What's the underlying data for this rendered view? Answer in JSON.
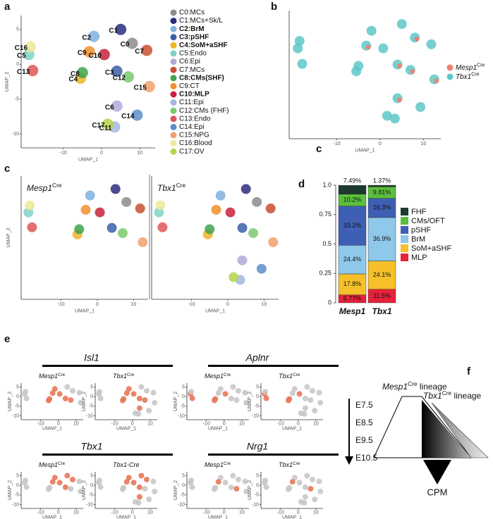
{
  "panel_labels": [
    "a",
    "b",
    "c",
    "d",
    "e",
    "f"
  ],
  "stray_label": "c",
  "chart_data": [
    {
      "type": "scatter",
      "xlabel": "UMAP_1",
      "ylabel": "UMAP_2",
      "xlim": [
        -21,
        14
      ],
      "ylim": [
        -12,
        7
      ],
      "xticks": [
        -10,
        0,
        10
      ],
      "yticks": [
        -10,
        -5,
        0,
        5
      ],
      "series": [
        {
          "name": "C0:MCs",
          "label": "C0",
          "bold": false,
          "color": "#8c8c8c",
          "x": [
            8
          ],
          "y": [
            3
          ]
        },
        {
          "name": "C1:MCs+Sk/L",
          "label": "C1",
          "bold": false,
          "color": "#2b2d7e",
          "x": [
            5
          ],
          "y": [
            5
          ]
        },
        {
          "name": "C2:BrM",
          "label": "C2",
          "bold": true,
          "color": "#7fb2dd",
          "x": [
            -2
          ],
          "y": [
            4
          ]
        },
        {
          "name": "C3:pSHF",
          "label": "C3",
          "bold": true,
          "color": "#3a5fa8",
          "x": [
            4
          ],
          "y": [
            -1
          ]
        },
        {
          "name": "C4:SoM+aSHF",
          "label": "C4",
          "bold": true,
          "color": "#f0b429",
          "x": [
            -5.5
          ],
          "y": [
            -2
          ]
        },
        {
          "name": "C5:Endo",
          "label": "C5",
          "bold": false,
          "color": "#7fd3c4",
          "x": [
            -19
          ],
          "y": [
            1.4
          ]
        },
        {
          "name": "C6:Epi",
          "label": "C6",
          "bold": false,
          "color": "#b3a9d8",
          "x": [
            4
          ],
          "y": [
            -6
          ]
        },
        {
          "name": "C7:MCs",
          "label": "C7",
          "bold": false,
          "color": "#c8502f",
          "x": [
            11.8
          ],
          "y": [
            2
          ]
        },
        {
          "name": "C8:CMs(SHF)",
          "label": "C8",
          "bold": true,
          "color": "#3fa34d",
          "x": [
            -5
          ],
          "y": [
            -1.2
          ]
        },
        {
          "name": "C9:CT",
          "label": "C9",
          "bold": false,
          "color": "#f28e2b",
          "x": [
            -3.2
          ],
          "y": [
            1.8
          ]
        },
        {
          "name": "C10:MLP",
          "label": "C10",
          "bold": true,
          "color": "#c8213a",
          "x": [
            0.7
          ],
          "y": [
            1.4
          ]
        },
        {
          "name": "C11:Epi",
          "label": "C11",
          "bold": false,
          "color": "#a3b8dc",
          "x": [
            3.4
          ],
          "y": [
            -9
          ]
        },
        {
          "name": "C12:CMs (FHF)",
          "label": "C12",
          "bold": false,
          "color": "#7bc96f",
          "x": [
            7
          ],
          "y": [
            -1.8
          ]
        },
        {
          "name": "C13:Endo",
          "label": "C13",
          "bold": false,
          "color": "#e05555",
          "x": [
            -18
          ],
          "y": [
            -0.9
          ]
        },
        {
          "name": "C14:Epi",
          "label": "C14",
          "bold": false,
          "color": "#5e8ec7",
          "x": [
            9.3
          ],
          "y": [
            -7.3
          ]
        },
        {
          "name": "C15:NPG",
          "label": "C15",
          "bold": false,
          "color": "#f0a070",
          "x": [
            12.5
          ],
          "y": [
            -3.2
          ]
        },
        {
          "name": "C16:Blood",
          "label": "C16",
          "bold": false,
          "color": "#efe89a",
          "x": [
            -18.6
          ],
          "y": [
            2.5
          ]
        },
        {
          "name": "C17:OV",
          "label": "C17",
          "bold": false,
          "color": "#b7d44a",
          "x": [
            1.6
          ],
          "y": [
            -8.6
          ]
        }
      ]
    },
    {
      "type": "scatter",
      "xlabel": "UMAP_1",
      "xlim": [
        -21,
        14
      ],
      "ylim": [
        -12,
        7
      ],
      "xticks": [
        -10,
        0,
        10
      ],
      "series": [
        {
          "name": "Mesp1",
          "sup": "Cre",
          "color": "#f08070"
        },
        {
          "name": "Tbx1",
          "sup": "Cre",
          "color": "#5ec8c8"
        }
      ]
    },
    {
      "type": "scatter",
      "xlabel": "UMAP_1",
      "ylabel": "UMAP_2",
      "xlim": [
        -21,
        14
      ],
      "ylim": [
        -12,
        7
      ],
      "xticks": [
        -10,
        0,
        10
      ],
      "facets": [
        {
          "name": "Mesp1",
          "sup": "Cre"
        },
        {
          "name": "Tbx1",
          "sup": "Cre"
        }
      ]
    },
    {
      "type": "bar",
      "stacked": true,
      "categories": [
        "Mesp1",
        "Tbx1"
      ],
      "ylim": [
        0,
        1
      ],
      "yticks": [
        0,
        0.25,
        0.5,
        0.75,
        {
          "value": 1,
          "label": "1.0"
        }
      ],
      "series": [
        {
          "name": "FHF",
          "color": "#1d3a2e",
          "values": [
            0.0749,
            0.0137
          ],
          "value_labels": [
            "7.49%",
            "1.37%"
          ]
        },
        {
          "name": "CMs/OFT",
          "color": "#5bbf3e",
          "values": [
            0.102,
            0.0981
          ],
          "value_labels": [
            "10.2%",
            "9.81%"
          ]
        },
        {
          "name": "pSHF",
          "color": "#3f5fb5",
          "values": [
            0.332,
            0.163
          ],
          "value_labels": [
            "33.2%",
            "16.3%"
          ]
        },
        {
          "name": "BrM",
          "color": "#8ec8ea",
          "values": [
            0.244,
            0.369
          ],
          "value_labels": [
            "24.4%",
            "36.9%"
          ]
        },
        {
          "name": "SoM+aSHF",
          "color": "#f5c02a",
          "values": [
            0.178,
            0.241
          ],
          "value_labels": [
            "17.8%",
            "24.1%"
          ]
        },
        {
          "name": "MLP",
          "color": "#e8213a",
          "values": [
            0.0677,
            0.115
          ],
          "value_labels": [
            "6.77%",
            "11.5%"
          ]
        }
      ]
    },
    {
      "type": "scatter",
      "xlabel": "UMAP_1",
      "ylabel": "UMAP_2",
      "xlim": [
        -21,
        14
      ],
      "ylim": [
        -12,
        7
      ],
      "xticks": [
        -10,
        0,
        10
      ],
      "yticks": [
        -10,
        -5,
        0,
        5
      ],
      "genes": [
        {
          "gene": "Isl1",
          "facets": [
            {
              "name": "Mesp1",
              "sup": "Cre"
            },
            {
              "name": "Tbx1",
              "sup": "Cre"
            }
          ]
        },
        {
          "gene": "Aplnr",
          "facets": [
            {
              "name": "Mesp1",
              "sup": "Cre"
            },
            {
              "name": "Tbx1",
              "sup": "Cre"
            }
          ]
        },
        {
          "gene": "Tbx1",
          "facets": [
            {
              "name": "Mesp1",
              "sup": "Cre"
            },
            {
              "name": "Tbx1-Cre"
            }
          ]
        },
        {
          "gene": "Nrg1",
          "facets": [
            {
              "name": "Mesp1",
              "sup": "Cre"
            },
            {
              "name": "Tbx1",
              "sup": "Cre"
            }
          ]
        }
      ]
    }
  ],
  "diagram": {
    "lineages": [
      {
        "name": "Mesp1",
        "sup": "Cre",
        "tail": " lineage"
      },
      {
        "name": "Tbx1",
        "sup": "Cre",
        "tail": " lineage"
      }
    ],
    "stages": [
      "E7.5",
      "E8.5",
      "E9.5",
      "E10.5"
    ],
    "target": "CPM"
  }
}
